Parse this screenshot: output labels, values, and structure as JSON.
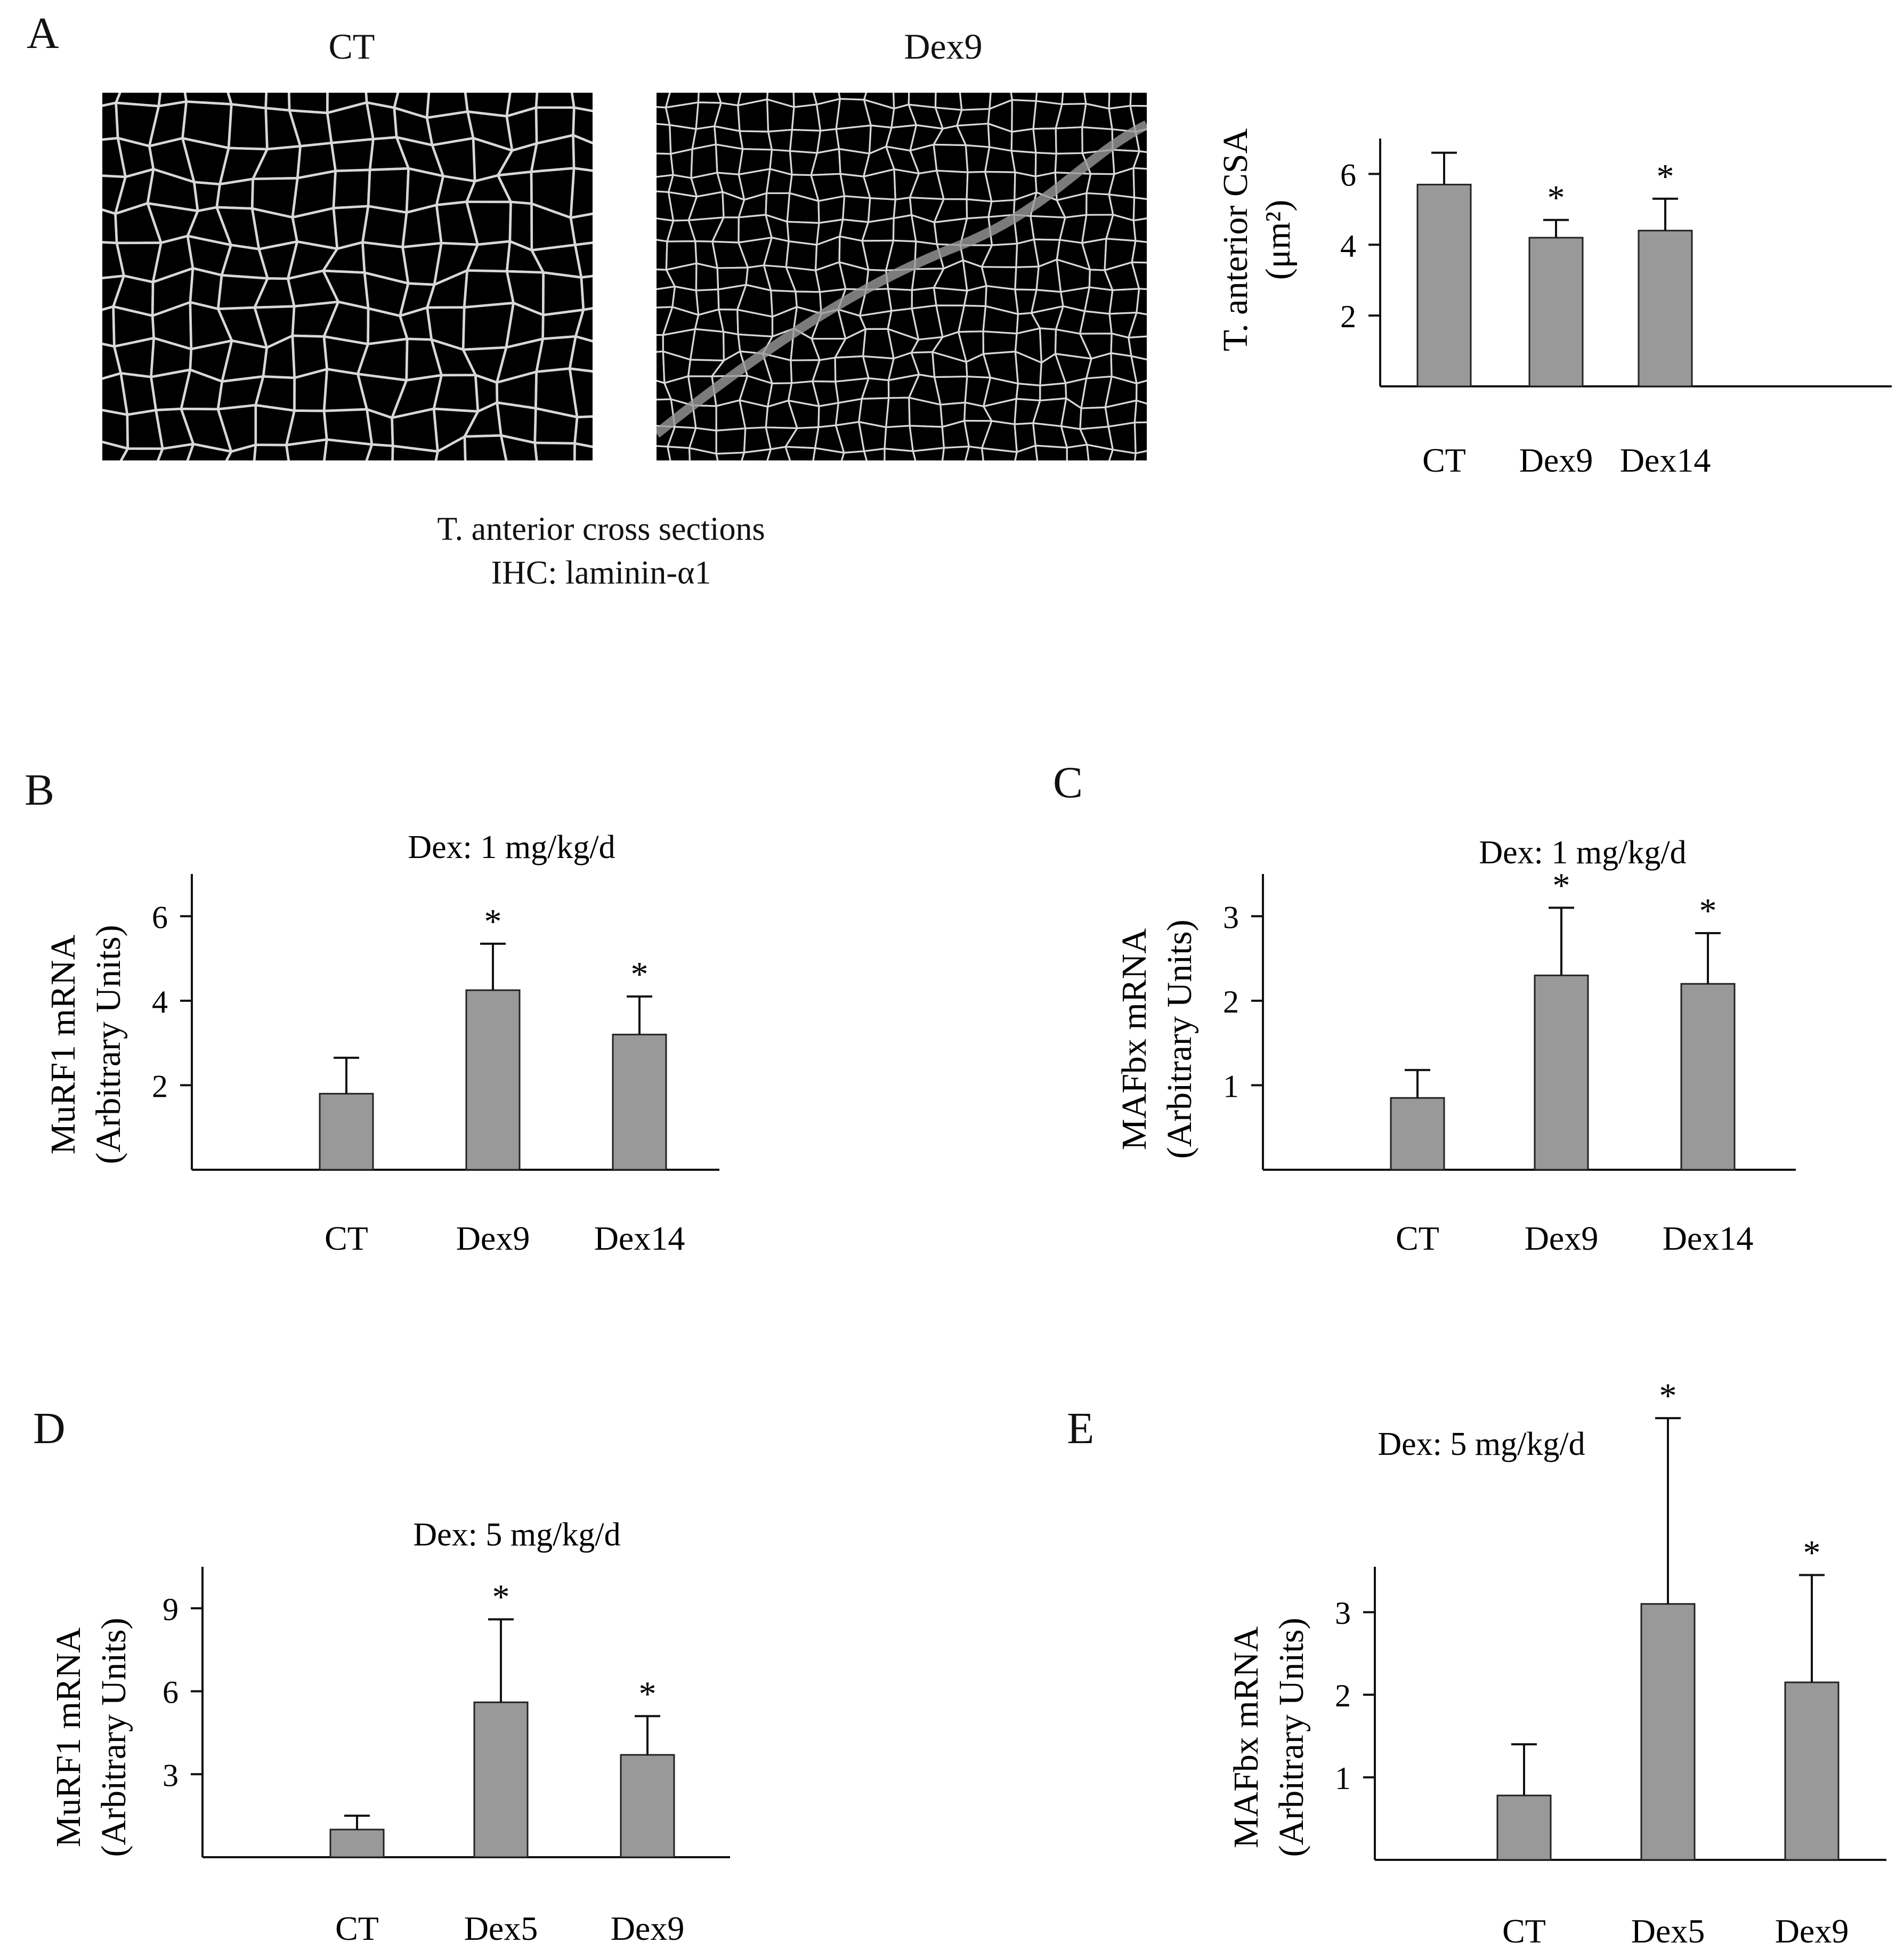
{
  "panelA": {
    "letter": "A",
    "image_labels": [
      "CT",
      "Dex9"
    ],
    "caption_line1": "T. anterior cross sections",
    "caption_line2": "IHC: laminin-α1"
  },
  "panels": {
    "B": "B",
    "C": "C",
    "D": "D",
    "E": "E"
  },
  "chart_data": [
    {
      "id": "A",
      "type": "bar",
      "title": "",
      "ylabel_line1": "T. anterior CSA",
      "ylabel_line2": "(μm²)",
      "categories": [
        "CT",
        "Dex9",
        "Dex14"
      ],
      "values": [
        5.7,
        4.2,
        4.4
      ],
      "errors": [
        0.9,
        0.5,
        0.9
      ],
      "significant": [
        false,
        true,
        true
      ],
      "ylim": [
        0,
        7
      ],
      "yticks": [
        2,
        4,
        6
      ],
      "bar_color": "#999999"
    },
    {
      "id": "B",
      "type": "bar",
      "title": "Dex: 1 mg/kg/d",
      "ylabel_line1": "MuRF1 mRNA",
      "ylabel_line2": "(Arbitrary Units)",
      "categories": [
        "CT",
        "Dex9",
        "Dex14"
      ],
      "values": [
        1.8,
        4.25,
        3.2
      ],
      "errors": [
        0.85,
        1.1,
        0.9
      ],
      "significant": [
        false,
        true,
        true
      ],
      "ylim": [
        0,
        7
      ],
      "yticks": [
        2,
        4,
        6
      ],
      "bar_color": "#999999"
    },
    {
      "id": "C",
      "type": "bar",
      "title": "Dex: 1 mg/kg/d",
      "ylabel_line1": "MAFbx mRNA",
      "ylabel_line2": "(Arbitrary Units)",
      "categories": [
        "CT",
        "Dex9",
        "Dex14"
      ],
      "values": [
        0.85,
        2.3,
        2.2
      ],
      "errors": [
        0.33,
        0.8,
        0.6
      ],
      "significant": [
        false,
        true,
        true
      ],
      "ylim": [
        0,
        3.5
      ],
      "yticks": [
        1,
        2,
        3
      ],
      "bar_color": "#999999"
    },
    {
      "id": "D",
      "type": "bar",
      "title": "Dex: 5 mg/kg/d",
      "ylabel_line1": "MuRF1 mRNA",
      "ylabel_line2": "(Arbitrary Units)",
      "categories": [
        "CT",
        "Dex5",
        "Dex9"
      ],
      "values": [
        1.0,
        5.6,
        3.7
      ],
      "errors": [
        0.5,
        3.0,
        1.4
      ],
      "significant": [
        false,
        true,
        true
      ],
      "ylim": [
        0,
        10.5
      ],
      "yticks": [
        3,
        6,
        9
      ],
      "bar_color": "#999999"
    },
    {
      "id": "E",
      "type": "bar",
      "title": "Dex: 5 mg/kg/d",
      "ylabel_line1": "MAFbx mRNA",
      "ylabel_line2": "(Arbitrary Units)",
      "categories": [
        "CT",
        "Dex5",
        "Dex9"
      ],
      "values": [
        0.78,
        3.1,
        2.15
      ],
      "errors": [
        0.62,
        2.25,
        1.3
      ],
      "significant": [
        false,
        true,
        true
      ],
      "ylim": [
        0,
        3.55
      ],
      "yticks": [
        1,
        2,
        3
      ],
      "bar_color": "#999999"
    }
  ]
}
